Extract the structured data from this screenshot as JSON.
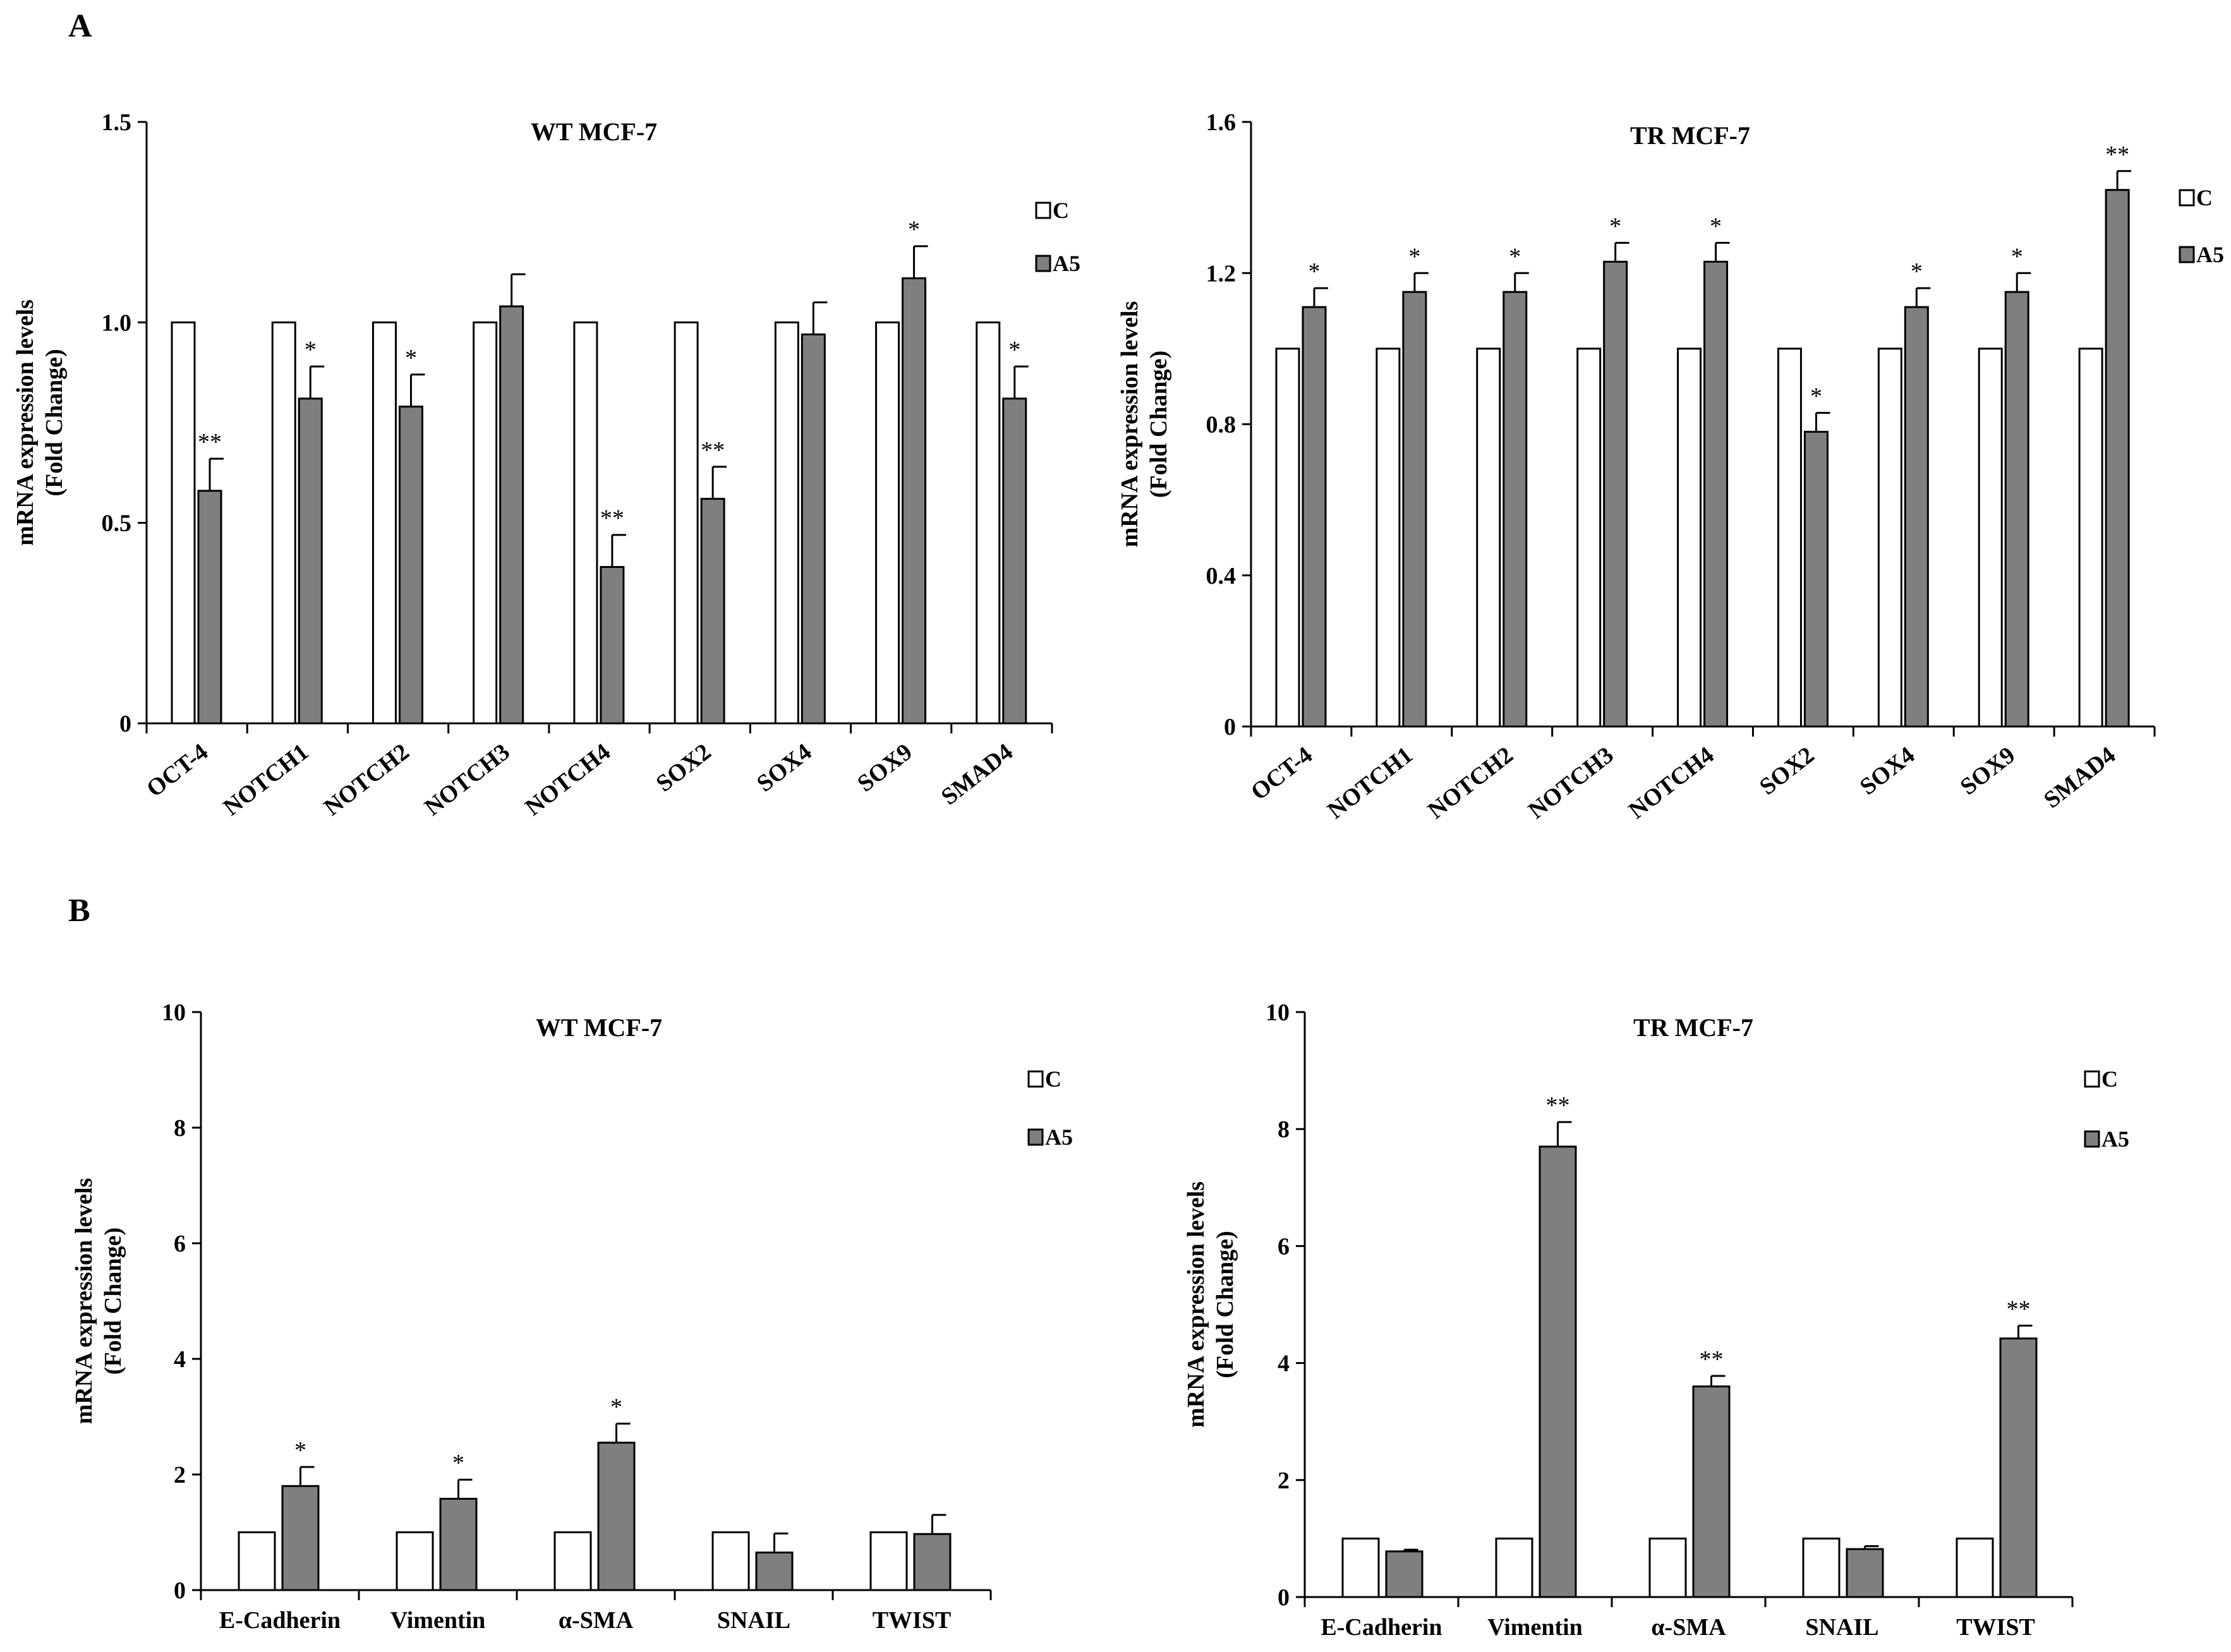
{
  "panels": {
    "A": "A",
    "B": "B"
  },
  "legend": {
    "c": "C",
    "a5": "A5"
  },
  "colors": {
    "c_fill": "#ffffff",
    "a5_fill": "#7f7f7f",
    "stroke": "#000000"
  },
  "chart_data": [
    {
      "type": "bar",
      "panel": "A",
      "title": "WT MCF-7",
      "ylabel_line1": "mRNA expression levels",
      "ylabel_line2": "(Fold Change)",
      "xlabel": "",
      "ylim": [
        0,
        1.5
      ],
      "yticks": [
        0,
        0.5,
        1.0,
        1.5
      ],
      "ytick_labels": [
        "0",
        "0.5",
        "1.0",
        "1.5"
      ],
      "categories": [
        "OCT-4",
        "NOTCH1",
        "NOTCH2",
        "NOTCH3",
        "NOTCH4",
        "SOX2",
        "SOX4",
        "SOX9",
        "SMAD4"
      ],
      "series": [
        {
          "name": "C",
          "values": [
            1,
            1,
            1,
            1,
            1,
            1,
            1,
            1,
            1
          ],
          "errors": [
            0,
            0,
            0,
            0,
            0,
            0,
            0,
            0,
            0
          ]
        },
        {
          "name": "A5",
          "values": [
            0.58,
            0.81,
            0.79,
            1.04,
            0.39,
            0.56,
            0.97,
            1.11,
            0.81
          ],
          "errors": [
            0.08,
            0.08,
            0.08,
            0.08,
            0.08,
            0.08,
            0.08,
            0.08,
            0.08
          ]
        }
      ],
      "significance": [
        "**",
        "*",
        "*",
        "",
        "**",
        "**",
        "",
        "*",
        "*"
      ],
      "rotate_labels": true
    },
    {
      "type": "bar",
      "panel": "A",
      "title": "TR MCF-7",
      "ylabel_line1": "mRNA expression levels",
      "ylabel_line2": "(Fold Change)",
      "xlabel": "",
      "ylim": [
        0,
        1.6
      ],
      "yticks": [
        0,
        0.4,
        0.8,
        1.2,
        1.6
      ],
      "ytick_labels": [
        "0",
        "0.4",
        "0.8",
        "1.2",
        "1.6"
      ],
      "categories": [
        "OCT-4",
        "NOTCH1",
        "NOTCH2",
        "NOTCH3",
        "NOTCH4",
        "SOX2",
        "SOX4",
        "SOX9",
        "SMAD4"
      ],
      "series": [
        {
          "name": "C",
          "values": [
            1,
            1,
            1,
            1,
            1,
            1,
            1,
            1,
            1
          ],
          "errors": [
            0,
            0,
            0,
            0,
            0,
            0,
            0,
            0,
            0
          ]
        },
        {
          "name": "A5",
          "values": [
            1.11,
            1.15,
            1.15,
            1.23,
            1.23,
            0.78,
            1.11,
            1.15,
            1.42
          ],
          "errors": [
            0.05,
            0.05,
            0.05,
            0.05,
            0.05,
            0.05,
            0.05,
            0.05,
            0.05
          ]
        }
      ],
      "significance": [
        "*",
        "*",
        "*",
        "*",
        "*",
        "*",
        "*",
        "*",
        "**"
      ],
      "rotate_labels": true
    },
    {
      "type": "bar",
      "panel": "B",
      "title": "WT MCF-7",
      "ylabel_line1": "mRNA expression levels",
      "ylabel_line2": "(Fold Change)",
      "xlabel": "",
      "ylim": [
        0,
        10
      ],
      "yticks": [
        0,
        2,
        4,
        6,
        8,
        10
      ],
      "ytick_labels": [
        "0",
        "2",
        "4",
        "6",
        "8",
        "10"
      ],
      "categories": [
        "E-Cadherin",
        "Vimentin",
        "α-SMA",
        "SNAIL",
        "TWIST"
      ],
      "series": [
        {
          "name": "C",
          "values": [
            1,
            1,
            1,
            1,
            1
          ],
          "errors": [
            0,
            0,
            0,
            0,
            0
          ]
        },
        {
          "name": "A5",
          "values": [
            1.8,
            1.58,
            2.55,
            0.65,
            0.97
          ],
          "errors": [
            0.33,
            0.33,
            0.33,
            0.33,
            0.33
          ]
        }
      ],
      "significance": [
        "*",
        "*",
        "*",
        "",
        ""
      ],
      "rotate_labels": false
    },
    {
      "type": "bar",
      "panel": "B",
      "title": "TR MCF-7",
      "ylabel_line1": "mRNA expression levels",
      "ylabel_line2": "(Fold Change)",
      "xlabel": "",
      "ylim": [
        0,
        10
      ],
      "yticks": [
        0,
        2,
        4,
        6,
        8,
        10
      ],
      "ytick_labels": [
        "0",
        "2",
        "4",
        "6",
        "8",
        "10"
      ],
      "categories": [
        "E-Cadherin",
        "Vimentin",
        "α-SMA",
        "SNAIL",
        "TWIST"
      ],
      "series": [
        {
          "name": "C",
          "values": [
            1,
            1,
            1,
            1,
            1
          ],
          "errors": [
            0,
            0,
            0,
            0,
            0
          ]
        },
        {
          "name": "A5",
          "values": [
            0.78,
            7.7,
            3.6,
            0.82,
            4.42
          ],
          "errors": [
            0.03,
            0.42,
            0.18,
            0.05,
            0.22
          ]
        }
      ],
      "significance": [
        "",
        "**",
        "**",
        "",
        "**"
      ],
      "rotate_labels": false
    }
  ]
}
